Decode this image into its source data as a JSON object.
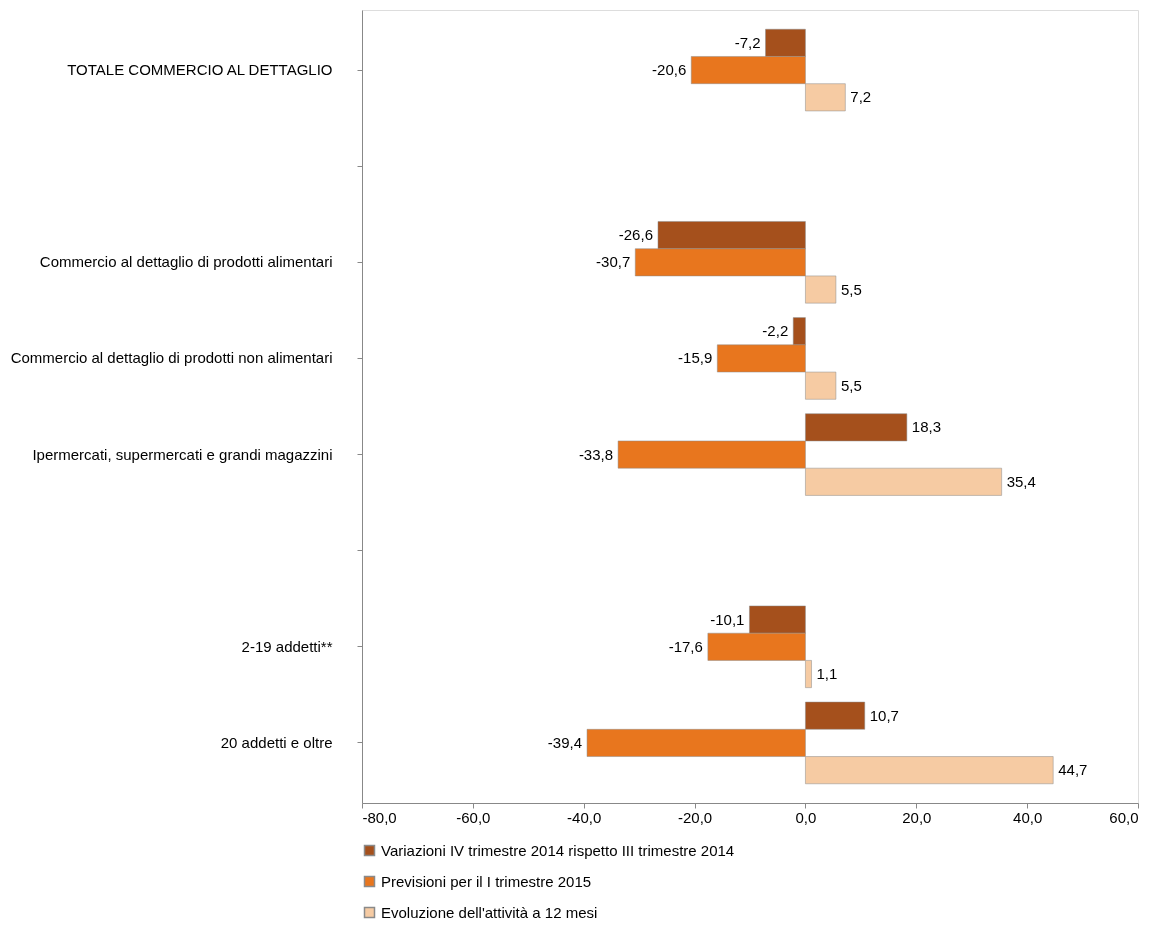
{
  "chart_data": {
    "type": "bar",
    "orientation": "horizontal",
    "categories": [
      "TOTALE COMMERCIO AL DETTAGLIO",
      null,
      "Commercio al dettaglio di prodotti alimentari",
      "Commercio al dettaglio di prodotti non alimentari",
      "Ipermercati, supermercati e grandi magazzini",
      null,
      "2-19 addetti**",
      "20 addetti e oltre"
    ],
    "series": [
      {
        "name": "Variazioni IV trimestre 2014 rispetto III trimestre 2014",
        "color": "#a5501c",
        "values": [
          -7.2,
          null,
          -26.6,
          -2.2,
          18.3,
          null,
          -10.1,
          10.7
        ],
        "value_labels": [
          "-7,2",
          null,
          "-26,6",
          "-2,2",
          "18,3",
          null,
          "-10,1",
          "10,7"
        ]
      },
      {
        "name": "Previsioni per il I trimestre 2015",
        "color": "#e8761e",
        "values": [
          -20.6,
          null,
          -30.7,
          -15.9,
          -33.8,
          null,
          -17.6,
          -39.4
        ],
        "value_labels": [
          "-20,6",
          null,
          "-30,7",
          "-15,9",
          "-33,8",
          null,
          "-17,6",
          "-39,4"
        ]
      },
      {
        "name": "Evoluzione dell'attività a 12 mesi",
        "color": "#f6cba3",
        "values": [
          7.2,
          null,
          5.5,
          5.5,
          35.4,
          null,
          1.1,
          44.7
        ],
        "value_labels": [
          "7,2",
          null,
          "5,5",
          "5,5",
          "35,4",
          null,
          "1,1",
          "44,7"
        ]
      }
    ],
    "xlim": [
      -80,
      60
    ],
    "xticks": [
      {
        "value": -80,
        "label": "-80,0"
      },
      {
        "value": -60,
        "label": "-60,0"
      },
      {
        "value": -40,
        "label": "-40,0"
      },
      {
        "value": -20,
        "label": "-20,0"
      },
      {
        "value": 0,
        "label": "0,0"
      },
      {
        "value": 20,
        "label": "20,0"
      },
      {
        "value": 40,
        "label": "40,0"
      },
      {
        "value": 60,
        "label": "60,0"
      }
    ],
    "grid": false,
    "legend": "bottom"
  }
}
